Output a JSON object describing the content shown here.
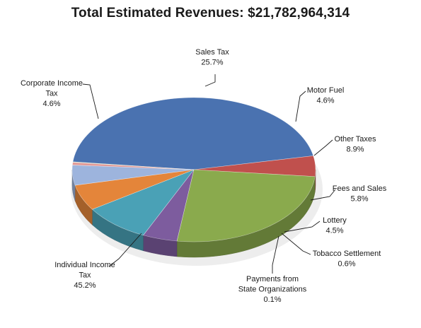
{
  "chart_data": {
    "type": "pie",
    "title": "Total Estimated Revenues: $21,782,964,314",
    "slices": [
      {
        "label": "Individual Income Tax",
        "label_lines": [
          "Individual Income",
          "Tax"
        ],
        "value": 45.2,
        "pct_label": "45.2%",
        "color": "#4a72b0"
      },
      {
        "label": "Corporate Income Tax",
        "label_lines": [
          "Corporate Income",
          "Tax"
        ],
        "value": 4.6,
        "pct_label": "4.6%",
        "color": "#c0504d"
      },
      {
        "label": "Sales Tax",
        "label_lines": [
          "Sales Tax"
        ],
        "value": 25.7,
        "pct_label": "25.7%",
        "color": "#8aaa4d"
      },
      {
        "label": "Motor Fuel",
        "label_lines": [
          "Motor Fuel"
        ],
        "value": 4.6,
        "pct_label": "4.6%",
        "color": "#7d5c9e"
      },
      {
        "label": "Other Taxes",
        "label_lines": [
          "Other Taxes"
        ],
        "value": 8.9,
        "pct_label": "8.9%",
        "color": "#4aa1b6"
      },
      {
        "label": "Fees and Sales",
        "label_lines": [
          "Fees and Sales"
        ],
        "value": 5.8,
        "pct_label": "5.8%",
        "color": "#e4853a"
      },
      {
        "label": "Lottery",
        "label_lines": [
          "Lottery"
        ],
        "value": 4.5,
        "pct_label": "4.5%",
        "color": "#9db4dd"
      },
      {
        "label": "Tobacco Settlement",
        "label_lines": [
          "Tobacco Settlement"
        ],
        "value": 0.6,
        "pct_label": "0.6%",
        "color": "#e29a97"
      },
      {
        "label": "Payments from State Organizations",
        "label_lines": [
          "Payments from",
          "State Organizations"
        ],
        "value": 0.1,
        "pct_label": "0.1%",
        "color": "#c9d8a6"
      }
    ],
    "legend": "none"
  }
}
